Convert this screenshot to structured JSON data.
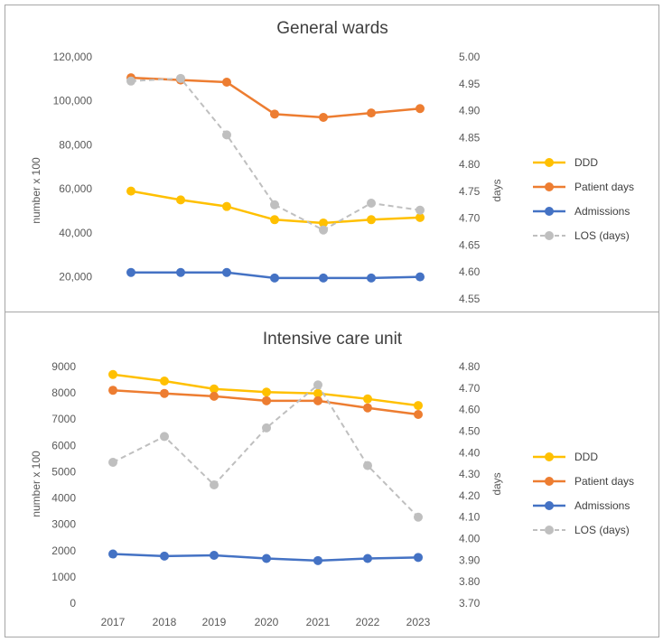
{
  "chart_data": [
    {
      "type": "line",
      "title": "General wards",
      "categories": [
        "2017",
        "2018",
        "2019",
        "2020",
        "2021",
        "2022",
        "2023"
      ],
      "ylabel": "number x 100",
      "y2label": "days",
      "ylim": [
        10000,
        120000
      ],
      "yticks": [
        "20,000",
        "40,000",
        "60,000",
        "80,000",
        "100,000",
        "120,000"
      ],
      "ytick_values": [
        20000,
        40000,
        60000,
        80000,
        100000,
        120000
      ],
      "y2lim": [
        4.55,
        5.0
      ],
      "y2ticks": [
        "4.55",
        "4.60",
        "4.65",
        "4.70",
        "4.75",
        "4.80",
        "4.85",
        "4.90",
        "4.95",
        "5.00"
      ],
      "y2tick_values": [
        4.55,
        4.6,
        4.65,
        4.7,
        4.75,
        4.8,
        4.85,
        4.9,
        4.95,
        5.0
      ],
      "show_x_labels": false,
      "legend_position": "right",
      "series": [
        {
          "name": "DDD",
          "axis": "left",
          "color": "#FFC000",
          "dashed": false,
          "values": [
            59000,
            55000,
            52000,
            46000,
            44500,
            46000,
            47000
          ]
        },
        {
          "name": "Patient days",
          "axis": "left",
          "color": "#ED7D31",
          "dashed": false,
          "values": [
            110500,
            109500,
            108500,
            94000,
            92500,
            94500,
            96500
          ]
        },
        {
          "name": "Admissions",
          "axis": "left",
          "color": "#4472C4",
          "dashed": false,
          "values": [
            22000,
            22000,
            22000,
            19500,
            19500,
            19500,
            20000
          ]
        },
        {
          "name": "LOS (days)",
          "axis": "right",
          "color": "#BFBFBF",
          "dashed": true,
          "values": [
            4.955,
            4.96,
            4.855,
            4.725,
            4.678,
            4.728,
            4.715
          ]
        }
      ]
    },
    {
      "type": "line",
      "title": "Intensive care unit",
      "categories": [
        "2017",
        "2018",
        "2019",
        "2020",
        "2021",
        "2022",
        "2023"
      ],
      "ylabel": "number x 100",
      "y2label": "days",
      "ylim": [
        0,
        9000
      ],
      "yticks": [
        "0",
        "1000",
        "2000",
        "3000",
        "4000",
        "5000",
        "6000",
        "7000",
        "8000",
        "9000"
      ],
      "ytick_values": [
        0,
        1000,
        2000,
        3000,
        4000,
        5000,
        6000,
        7000,
        8000,
        9000
      ],
      "y2lim": [
        3.7,
        4.8
      ],
      "y2ticks": [
        "3.70",
        "3.80",
        "3.90",
        "4.00",
        "4.10",
        "4.20",
        "4.30",
        "4.40",
        "4.50",
        "4.60",
        "4.70",
        "4.80"
      ],
      "y2tick_values": [
        3.7,
        3.8,
        3.9,
        4.0,
        4.1,
        4.2,
        4.3,
        4.4,
        4.5,
        4.6,
        4.7,
        4.8
      ],
      "show_x_labels": true,
      "legend_position": "right",
      "series": [
        {
          "name": "DDD",
          "axis": "left",
          "color": "#FFC000",
          "dashed": false,
          "values": [
            8700,
            8450,
            8150,
            8030,
            7980,
            7770,
            7520
          ]
        },
        {
          "name": "Patient days",
          "axis": "left",
          "color": "#ED7D31",
          "dashed": false,
          "values": [
            8100,
            7980,
            7870,
            7700,
            7700,
            7430,
            7180
          ]
        },
        {
          "name": "Admissions",
          "axis": "left",
          "color": "#4472C4",
          "dashed": false,
          "values": [
            1870,
            1790,
            1820,
            1700,
            1620,
            1700,
            1740
          ]
        },
        {
          "name": "LOS (days)",
          "axis": "right",
          "color": "#BFBFBF",
          "dashed": true,
          "values": [
            4.355,
            4.475,
            4.25,
            4.515,
            4.715,
            4.34,
            4.1
          ]
        }
      ]
    }
  ]
}
